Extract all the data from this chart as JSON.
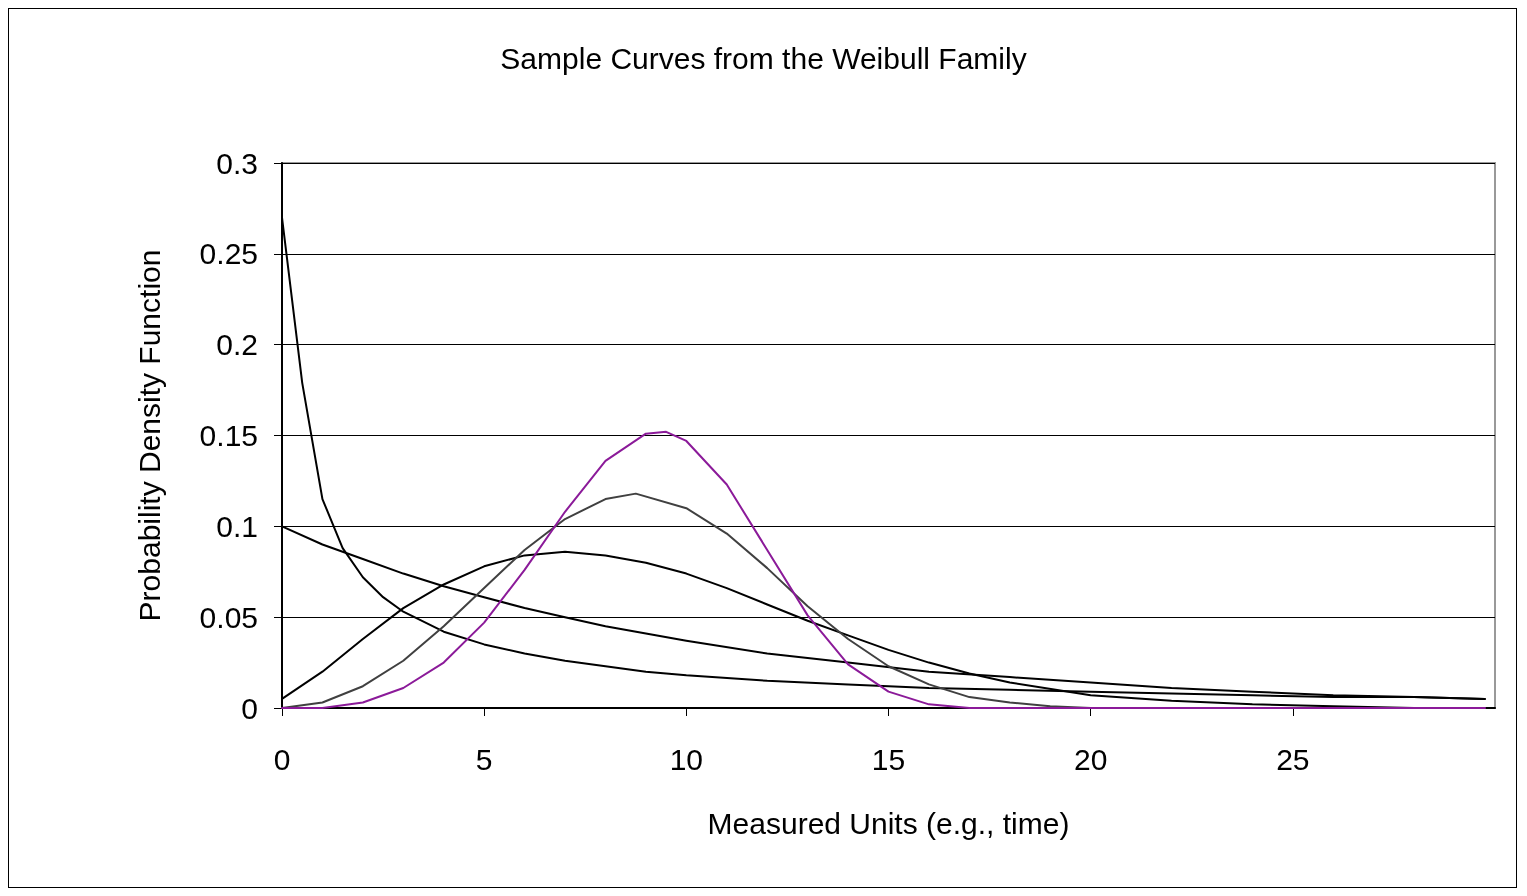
{
  "chart_data": {
    "type": "line",
    "title": "Sample Curves from the Weibull Family",
    "xlabel": "Measured Units (e.g., time)",
    "ylabel": "Probability Density Function",
    "xlim": [
      0,
      30
    ],
    "xticks": [
      0,
      5,
      10,
      15,
      20,
      25
    ],
    "ylim": [
      0,
      0.3
    ],
    "yticks": [
      0,
      0.05,
      0.1,
      0.15,
      0.2,
      0.25,
      0.3
    ],
    "grid": "y",
    "marker": "none",
    "line_style": "solid",
    "series": [
      {
        "color": "#000000",
        "x": [
          0,
          0.5,
          1,
          1.5,
          2,
          2.5,
          3,
          4,
          5,
          6,
          7,
          8,
          9,
          10,
          12,
          14,
          16,
          18,
          20,
          22,
          24,
          26,
          28,
          29.75
        ],
        "values": [
          0.27,
          0.179,
          0.115,
          0.088,
          0.072,
          0.061,
          0.053,
          0.042,
          0.035,
          0.03,
          0.026,
          0.023,
          0.02,
          0.018,
          0.015,
          0.013,
          0.011,
          0.01,
          0.009,
          0.008,
          0.007,
          0.006,
          0.006,
          0.005
        ]
      },
      {
        "color": "#000000",
        "x": [
          0,
          1,
          2,
          3,
          4,
          5,
          6,
          7,
          8,
          9,
          10,
          12,
          14,
          16,
          18,
          20,
          22,
          24,
          26,
          28,
          29.75
        ],
        "values": [
          0.1,
          0.09,
          0.082,
          0.074,
          0.067,
          0.061,
          0.055,
          0.05,
          0.045,
          0.041,
          0.037,
          0.03,
          0.025,
          0.02,
          0.017,
          0.014,
          0.011,
          0.009,
          0.007,
          0.006,
          0.005
        ]
      },
      {
        "color": "#000000",
        "x": [
          0,
          1,
          2,
          3,
          4,
          5,
          6,
          7,
          8,
          9,
          10,
          11,
          12,
          13,
          14,
          15,
          16,
          17,
          18,
          20,
          22,
          24,
          26,
          28,
          29.75
        ],
        "values": [
          0.005,
          0.02,
          0.038,
          0.055,
          0.068,
          0.078,
          0.084,
          0.086,
          0.084,
          0.08,
          0.074,
          0.066,
          0.057,
          0.048,
          0.04,
          0.032,
          0.025,
          0.019,
          0.014,
          0.007,
          0.004,
          0.002,
          0.001,
          0,
          0
        ]
      },
      {
        "color": "#404040",
        "x": [
          0,
          1,
          2,
          3,
          4,
          5,
          6,
          7,
          8,
          8.75,
          10,
          11,
          12,
          13,
          14,
          15,
          16,
          17,
          18,
          19,
          20,
          22,
          29.75
        ],
        "values": [
          0,
          0.003,
          0.012,
          0.026,
          0.045,
          0.066,
          0.087,
          0.104,
          0.115,
          0.118,
          0.11,
          0.096,
          0.077,
          0.056,
          0.038,
          0.023,
          0.013,
          0.006,
          0.003,
          0.001,
          0,
          0,
          0
        ]
      },
      {
        "color": "#8b1a99",
        "x": [
          0,
          1,
          2,
          3,
          4,
          5,
          6,
          7,
          8,
          9,
          9.5,
          10,
          11,
          12,
          13,
          14,
          15,
          16,
          17,
          18,
          29.75
        ],
        "values": [
          0,
          0,
          0.003,
          0.011,
          0.025,
          0.047,
          0.076,
          0.108,
          0.136,
          0.151,
          0.152,
          0.147,
          0.123,
          0.087,
          0.051,
          0.024,
          0.009,
          0.002,
          0,
          0,
          0
        ]
      }
    ]
  }
}
